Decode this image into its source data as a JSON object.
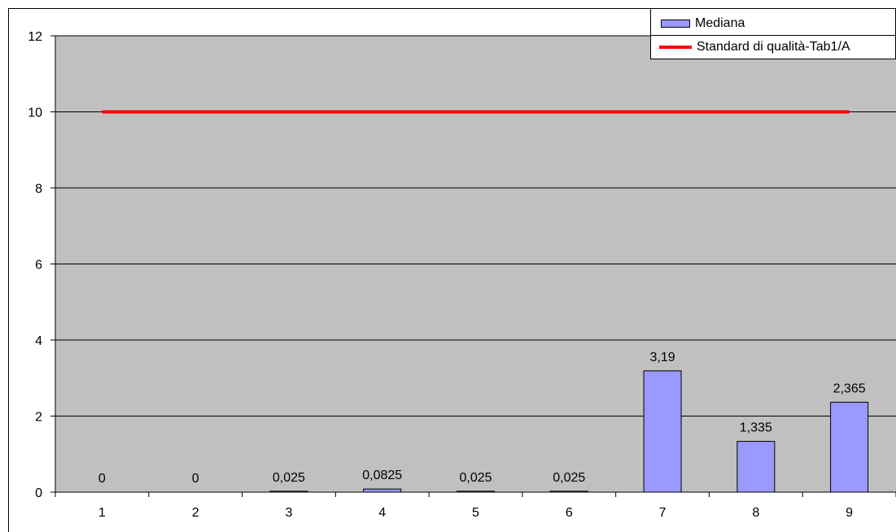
{
  "colors": {
    "plot_background": "#c0c0c0",
    "bar_fill": "#9999ff",
    "line_color": "#ff0000",
    "gridline": "#000000"
  },
  "chart_data": {
    "type": "bar",
    "categories": [
      "1",
      "2",
      "3",
      "4",
      "5",
      "6",
      "7",
      "8",
      "9"
    ],
    "series": [
      {
        "name": "Mediana",
        "type": "bar",
        "values": [
          0,
          0,
          0.025,
          0.0825,
          0.025,
          0.025,
          3.19,
          1.335,
          2.365
        ],
        "labels": [
          "0",
          "0",
          "0,025",
          "0,0825",
          "0,025",
          "0,025",
          "3,19",
          "1,335",
          "2,365"
        ]
      },
      {
        "name": "Standard di qualità-Tab1/A",
        "type": "line",
        "values": [
          10,
          10,
          10,
          10,
          10,
          10,
          10,
          10,
          10
        ]
      }
    ],
    "ylim": [
      0,
      12
    ],
    "yticks": [
      0,
      2,
      4,
      6,
      8,
      10,
      12
    ],
    "grid": true,
    "legend_position": "top-right",
    "title": "",
    "xlabel": "",
    "ylabel": ""
  },
  "legend": {
    "items": [
      {
        "label": "Mediana"
      },
      {
        "label": "Standard di qualità-Tab1/A"
      }
    ]
  }
}
